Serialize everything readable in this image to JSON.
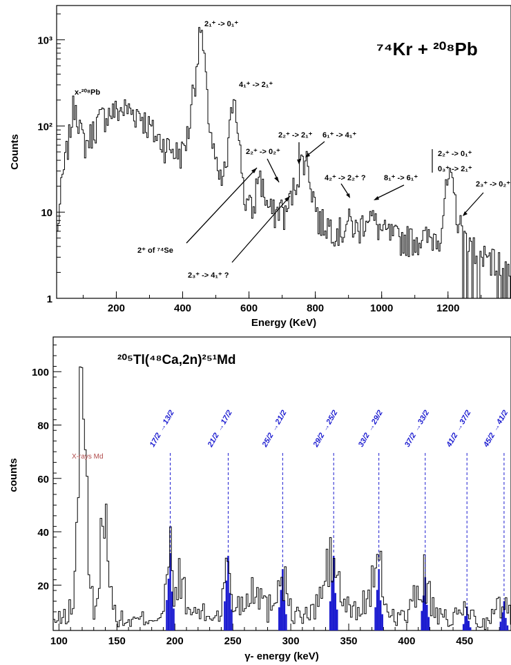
{
  "chart_data": [
    {
      "type": "line",
      "title": "⁷⁴Kr + ²⁰⁸Pb",
      "xlabel": "Energy (KeV)",
      "ylabel": "Counts",
      "xlim": [
        20,
        1390
      ],
      "ylim": [
        1,
        2500
      ],
      "yscale": "log",
      "x_ticks": [
        200,
        400,
        600,
        800,
        1000,
        1200
      ],
      "y_ticks": [
        {
          "v": 1,
          "label": "1"
        },
        {
          "v": 10,
          "label": "10"
        },
        {
          "v": 100,
          "label": "10²"
        },
        {
          "v": 1000,
          "label": "10³"
        }
      ],
      "spectrum_keypoints": [
        [
          20,
          4
        ],
        [
          30,
          12
        ],
        [
          45,
          35
        ],
        [
          60,
          80
        ],
        [
          70,
          160
        ],
        [
          77,
          200
        ],
        [
          85,
          130
        ],
        [
          95,
          75
        ],
        [
          110,
          62
        ],
        [
          130,
          90
        ],
        [
          150,
          120
        ],
        [
          170,
          140
        ],
        [
          200,
          150
        ],
        [
          230,
          160
        ],
        [
          250,
          145
        ],
        [
          270,
          145
        ],
        [
          290,
          110
        ],
        [
          320,
          75
        ],
        [
          350,
          60
        ],
        [
          380,
          50
        ],
        [
          400,
          50
        ],
        [
          420,
          90
        ],
        [
          440,
          400
        ],
        [
          450,
          1000
        ],
        [
          455,
          1600
        ],
        [
          462,
          700
        ],
        [
          475,
          150
        ],
        [
          490,
          60
        ],
        [
          505,
          25
        ],
        [
          520,
          22
        ],
        [
          535,
          40
        ],
        [
          545,
          110
        ],
        [
          555,
          270
        ],
        [
          560,
          200
        ],
        [
          570,
          60
        ],
        [
          585,
          15
        ],
        [
          600,
          12
        ],
        [
          615,
          10
        ],
        [
          630,
          30
        ],
        [
          640,
          20
        ],
        [
          655,
          12
        ],
        [
          670,
          10
        ],
        [
          685,
          10
        ],
        [
          695,
          12
        ],
        [
          710,
          9
        ],
        [
          725,
          14
        ],
        [
          740,
          22
        ],
        [
          750,
          30
        ],
        [
          765,
          45
        ],
        [
          775,
          40
        ],
        [
          790,
          18
        ],
        [
          810,
          8
        ],
        [
          850,
          7
        ],
        [
          880,
          6
        ],
        [
          900,
          8
        ],
        [
          930,
          6
        ],
        [
          960,
          10
        ],
        [
          975,
          8
        ],
        [
          1000,
          6
        ],
        [
          1050,
          5
        ],
        [
          1100,
          5
        ],
        [
          1150,
          5
        ],
        [
          1180,
          6
        ],
        [
          1195,
          18
        ],
        [
          1205,
          25
        ],
        [
          1215,
          18
        ],
        [
          1230,
          8
        ],
        [
          1250,
          5
        ],
        [
          1300,
          3
        ],
        [
          1350,
          2.5
        ],
        [
          1390,
          2.5
        ]
      ],
      "annotations": {
        "xpb": "x-²⁰⁸Pb",
        "t21_01": "2₁⁺ -> 0₁⁺",
        "t41_21": "4₁⁺ -> 2₁⁺",
        "t22_02": "2₂⁺ -> 0₂⁺",
        "t22_21": "2₂⁺ -> 2₁⁺",
        "t61_41": "6₁⁺ -> 4₁⁺",
        "t42_22": "4₂⁺ -> 2₂⁺ ?",
        "t81_61": "8₁⁺ -> 6₁⁺",
        "t22_01": "2₂⁺ -> 0₁⁺",
        "t03_21": "0₃⁺ -> 2₁⁺",
        "t23_02": "2₃⁺ -> 0₂⁺",
        "se74": "2⁺ of ⁷⁴Se",
        "t23_41": "2₃⁺ -> 4₁⁺ ?"
      }
    },
    {
      "type": "bar",
      "title": "²⁰⁵Tl(⁴⁸Ca,2n)²⁵¹Md",
      "xlabel": "γ- energy (keV)",
      "ylabel": "counts",
      "xlim": [
        95,
        490
      ],
      "ylim": [
        3,
        113
      ],
      "x_ticks": [
        100,
        150,
        200,
        250,
        300,
        350,
        400,
        450
      ],
      "y_ticks": [
        20,
        40,
        60,
        80,
        100
      ],
      "xray_label": "X-rays Md",
      "spectrum_keypoints": [
        [
          95,
          6
        ],
        [
          105,
          8
        ],
        [
          112,
          12
        ],
        [
          115,
          30
        ],
        [
          117,
          78
        ],
        [
          119,
          113
        ],
        [
          121,
          113
        ],
        [
          123,
          60
        ],
        [
          126,
          20
        ],
        [
          130,
          12
        ],
        [
          135,
          18
        ],
        [
          138,
          55
        ],
        [
          140,
          74
        ],
        [
          142,
          40
        ],
        [
          145,
          15
        ],
        [
          150,
          8
        ],
        [
          160,
          6
        ],
        [
          170,
          7
        ],
        [
          180,
          8
        ],
        [
          190,
          9
        ],
        [
          196,
          32
        ],
        [
          200,
          12
        ],
        [
          205,
          27
        ],
        [
          210,
          10
        ],
        [
          220,
          10
        ],
        [
          230,
          8
        ],
        [
          240,
          10
        ],
        [
          246,
          31
        ],
        [
          250,
          12
        ],
        [
          260,
          14
        ],
        [
          270,
          22
        ],
        [
          280,
          10
        ],
        [
          293,
          26
        ],
        [
          300,
          10
        ],
        [
          310,
          8
        ],
        [
          320,
          10
        ],
        [
          337,
          31
        ],
        [
          345,
          12
        ],
        [
          360,
          10
        ],
        [
          376,
          26
        ],
        [
          385,
          9
        ],
        [
          400,
          8
        ],
        [
          416,
          23
        ],
        [
          425,
          8
        ],
        [
          440,
          7
        ],
        [
          452,
          12
        ],
        [
          460,
          6
        ],
        [
          470,
          6
        ],
        [
          484,
          14
        ],
        [
          490,
          8
        ]
      ],
      "blue_peaks": [
        {
          "x": 196,
          "height": 32,
          "label_top": "17/2",
          "label_bottom": "13/2"
        },
        {
          "x": 246,
          "height": 31,
          "label_top": "21/2",
          "label_bottom": "17/2"
        },
        {
          "x": 293,
          "height": 26,
          "label_top": "25/2",
          "label_bottom": "21/2"
        },
        {
          "x": 337,
          "height": 31,
          "label_top": "29/2",
          "label_bottom": "25/2"
        },
        {
          "x": 376,
          "height": 26,
          "label_top": "33/2",
          "label_bottom": "29/2"
        },
        {
          "x": 416,
          "height": 23,
          "label_top": "37/2",
          "label_bottom": "33/2"
        },
        {
          "x": 452,
          "height": 12,
          "label_top": "41/2",
          "label_bottom": "37/2"
        },
        {
          "x": 484,
          "height": 14,
          "label_top": "45/2",
          "label_bottom": "41/2"
        }
      ],
      "colors": {
        "blue": "#1b1bd0",
        "xray": "#b04a4a"
      }
    }
  ]
}
